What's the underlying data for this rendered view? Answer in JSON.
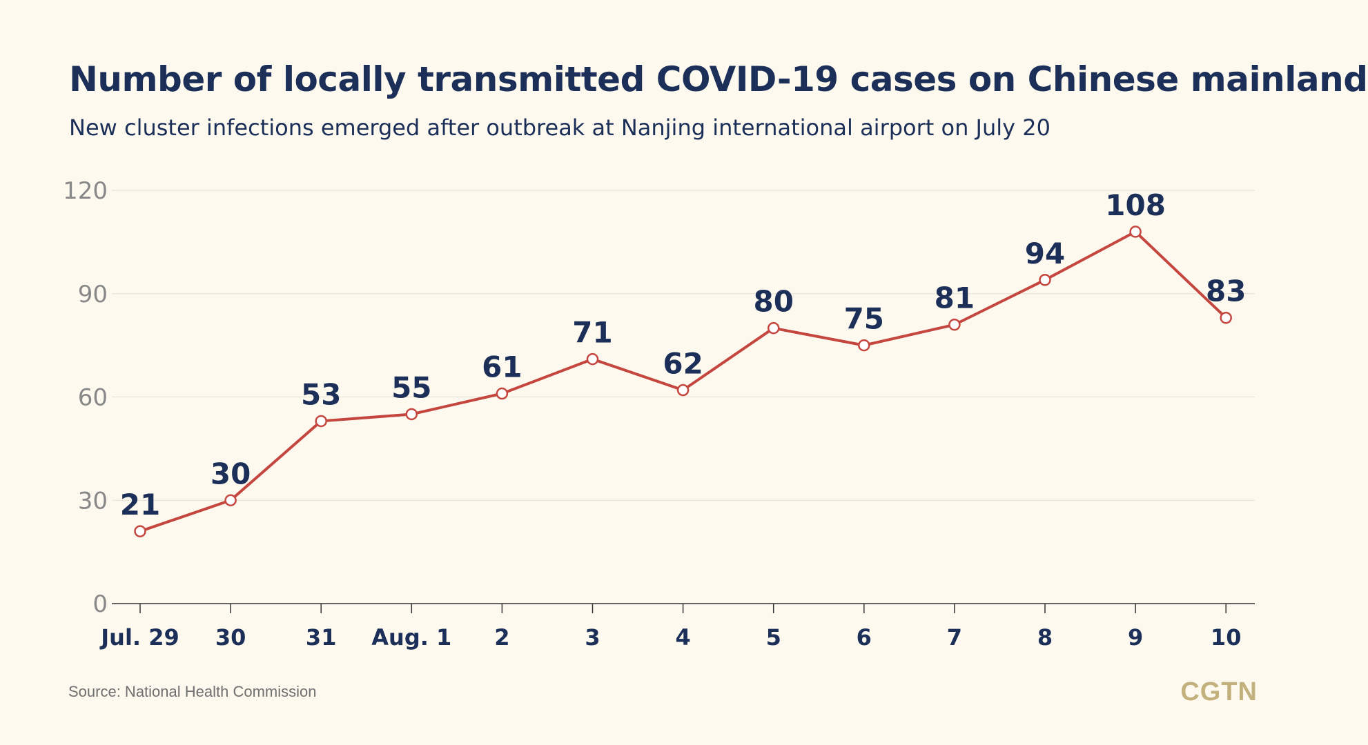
{
  "title": "Number of locally transmitted COVID-19 cases on Chinese mainland",
  "subtitle": "New cluster infections emerged after outbreak at Nanjing international airport on July 20",
  "source": "Source: National Health Commission",
  "logo": "CGTN",
  "colors": {
    "background": "#fdf9ef",
    "text": "#1b2f58",
    "line": "#c4463e",
    "marker_fill": "#ffffff",
    "grid": "#e3e0d3",
    "axis": "#333333",
    "tick_label": "#888888",
    "logo": "#c2b07d"
  },
  "chart_data": {
    "type": "line",
    "title": "Number of locally transmitted COVID-19 cases on Chinese mainland",
    "subtitle": "New cluster infections emerged after outbreak at Nanjing international airport on July 20",
    "categories": [
      "Jul. 29",
      "30",
      "31",
      "Aug. 1",
      "2",
      "3",
      "4",
      "5",
      "6",
      "7",
      "8",
      "9",
      "10"
    ],
    "series": [
      {
        "values": [
          21,
          30,
          53,
          55,
          61,
          71,
          62,
          80,
          75,
          81,
          94,
          108,
          83
        ]
      }
    ],
    "ylim": [
      0,
      120
    ],
    "yticks": [
      0,
      30,
      60,
      90,
      120
    ],
    "grid": true,
    "data_labels": true,
    "markers": "hollow-circle"
  }
}
